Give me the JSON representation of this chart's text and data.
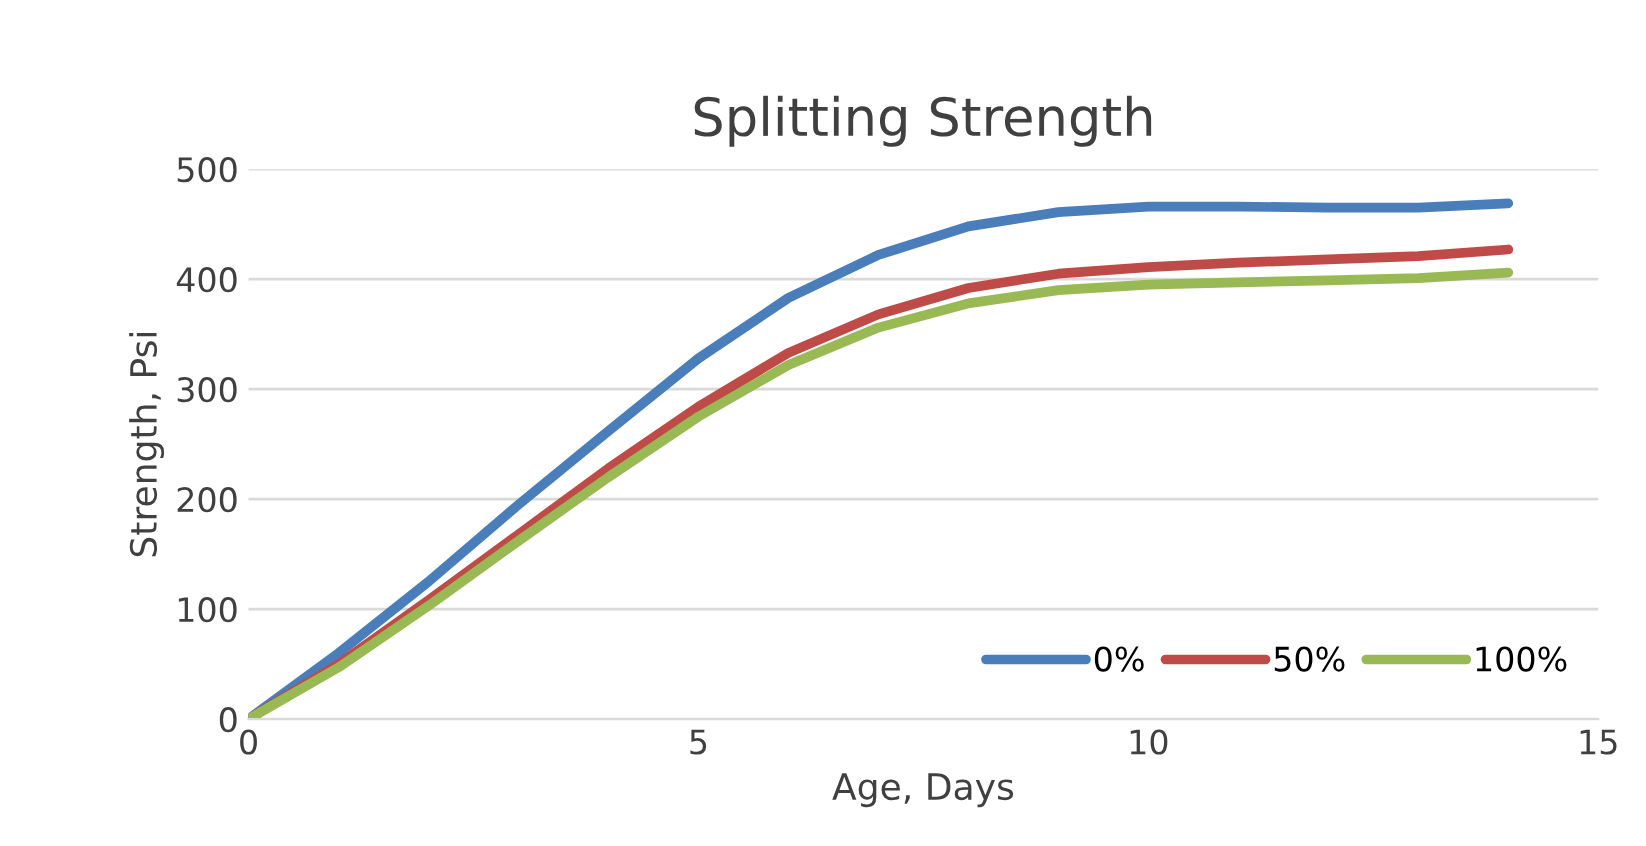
{
  "chart_data": {
    "type": "line",
    "title": "Splitting Strength",
    "xlabel": "Age, Days",
    "ylabel": "Strength, Psi",
    "x": [
      0,
      1,
      2,
      3,
      4,
      5,
      6,
      7,
      8,
      9,
      10,
      11,
      12,
      13,
      14
    ],
    "series": [
      {
        "name": "0%",
        "color": "#4a7ebb",
        "values": [
          0,
          60,
          125,
          195,
          262,
          328,
          383,
          422,
          448,
          461,
          466,
          466,
          465,
          465,
          469
        ]
      },
      {
        "name": "50%",
        "color": "#be4b48",
        "values": [
          0,
          50,
          108,
          168,
          228,
          284,
          333,
          368,
          392,
          405,
          411,
          415,
          418,
          421,
          427
        ]
      },
      {
        "name": "100%",
        "color": "#98b954",
        "values": [
          0,
          47,
          103,
          162,
          220,
          275,
          322,
          356,
          378,
          390,
          395,
          397,
          399,
          401,
          406
        ]
      }
    ],
    "xlim": [
      0,
      15
    ],
    "xticks": [
      0,
      5,
      10,
      15
    ],
    "ylim": [
      0,
      500
    ],
    "yticks": [
      0,
      100,
      200,
      300,
      400,
      500
    ],
    "grid": "y",
    "legend": "bottom right",
    "marker": "none",
    "line_style": "solid"
  }
}
